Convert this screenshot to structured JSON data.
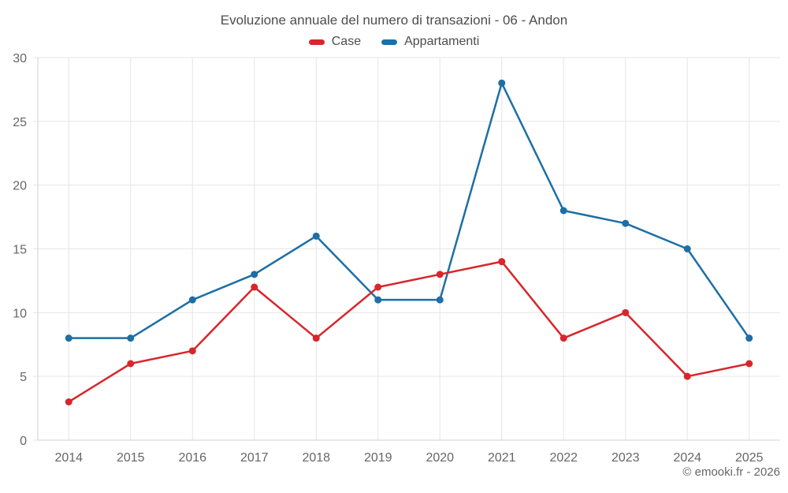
{
  "footer": {
    "copyright": "© emooki.fr - 2026"
  },
  "colors": {
    "grid": "#e6e6e6",
    "axis": "#d2d2d2",
    "tick_text": "#666666",
    "title_text": "#4d4d4d"
  },
  "chart_data": {
    "type": "line",
    "title": "Evoluzione annuale del numero di transazioni - 06 - Andon",
    "categories": [
      "2014",
      "2015",
      "2016",
      "2017",
      "2018",
      "2019",
      "2020",
      "2021",
      "2022",
      "2023",
      "2024",
      "2025"
    ],
    "series": [
      {
        "name": "Case",
        "color": "#d8262c",
        "values": [
          3,
          6,
          7,
          12,
          8,
          12,
          13,
          14,
          8,
          10,
          5,
          6
        ]
      },
      {
        "name": "Appartamenti",
        "color": "#1d6fa5",
        "values": [
          8,
          8,
          11,
          13,
          16,
          11,
          11,
          28,
          18,
          17,
          15,
          8
        ]
      }
    ],
    "xlabel": "",
    "ylabel": "",
    "ylim": [
      0,
      30
    ],
    "yticks": [
      0,
      5,
      10,
      15,
      20,
      25,
      30
    ],
    "grid": true,
    "legend_position": "top",
    "marker": "circle"
  }
}
